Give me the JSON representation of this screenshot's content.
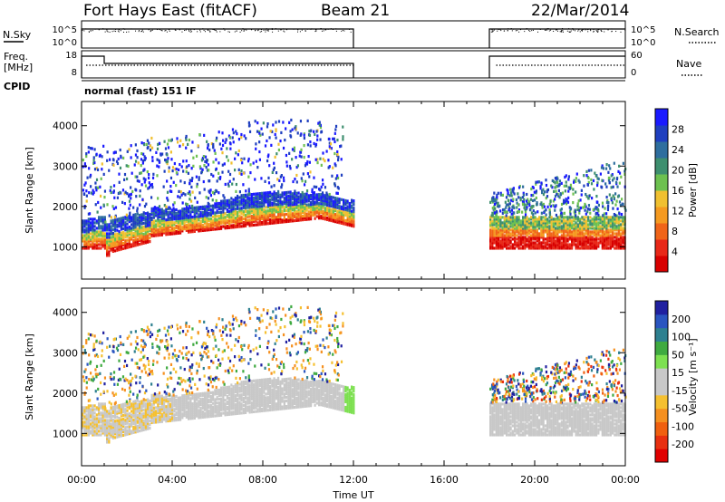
{
  "header": {
    "station": "Fort Hays East (fitACF)",
    "beam": "Beam 21",
    "date": "22/Mar/2014"
  },
  "top_panels": {
    "nsky_label": "N.Sky",
    "nsky_ticks": [
      "10^5",
      "10^0"
    ],
    "nsearch_label": "N.Search",
    "nsearch_ticks": [
      "10^5",
      "10^0"
    ],
    "freq_label": "Freq.",
    "freq_unit": "[MHz]",
    "freq_ticks": [
      "18",
      "8"
    ],
    "nave_label": "Nave",
    "nave_ticks": [
      "60",
      "0"
    ],
    "cpid_label": "CPID",
    "cpid_text": "normal (fast) 151 IF"
  },
  "chart_data": [
    {
      "type": "heatmap",
      "name": "power",
      "ylabel": "Slant Range [km]",
      "yticks": [
        "4000",
        "3000",
        "2000",
        "1000"
      ],
      "ylim": [
        200,
        4600
      ],
      "xlim_hours": [
        0,
        24
      ],
      "colorbar": {
        "label": "Power [dB]",
        "tick_labels": [
          "28",
          "24",
          "20",
          "16",
          "12",
          "8",
          "4"
        ],
        "colors": [
          "#1a1aff",
          "#1f3fbf",
          "#2e6e9e",
          "#3e8f6f",
          "#6dc14f",
          "#f0c030",
          "#f59a20",
          "#f06418",
          "#e82818",
          "#d80000"
        ]
      }
    },
    {
      "type": "heatmap",
      "name": "velocity",
      "ylabel": "Slant Range [km]",
      "yticks": [
        "4000",
        "3000",
        "2000",
        "1000"
      ],
      "ylim": [
        200,
        4600
      ],
      "xlim_hours": [
        0,
        24
      ],
      "colorbar": {
        "label": "Velocity [m s⁻¹]",
        "tick_labels": [
          "200",
          "100",
          "50",
          "15",
          "-15",
          "-50",
          "-100",
          "-200"
        ],
        "colors": [
          "#2020a0",
          "#2a55c0",
          "#2e8090",
          "#3faa40",
          "#7de050",
          "#c8c8c8",
          "#c8c8c8",
          "#f5c030",
          "#f59020",
          "#f06010",
          "#e83010",
          "#e00000"
        ]
      }
    }
  ],
  "x_axis": {
    "ticks": [
      "00:00",
      "04:00",
      "08:00",
      "12:00",
      "16:00",
      "20:00",
      "00:00"
    ],
    "label": "Time UT"
  }
}
